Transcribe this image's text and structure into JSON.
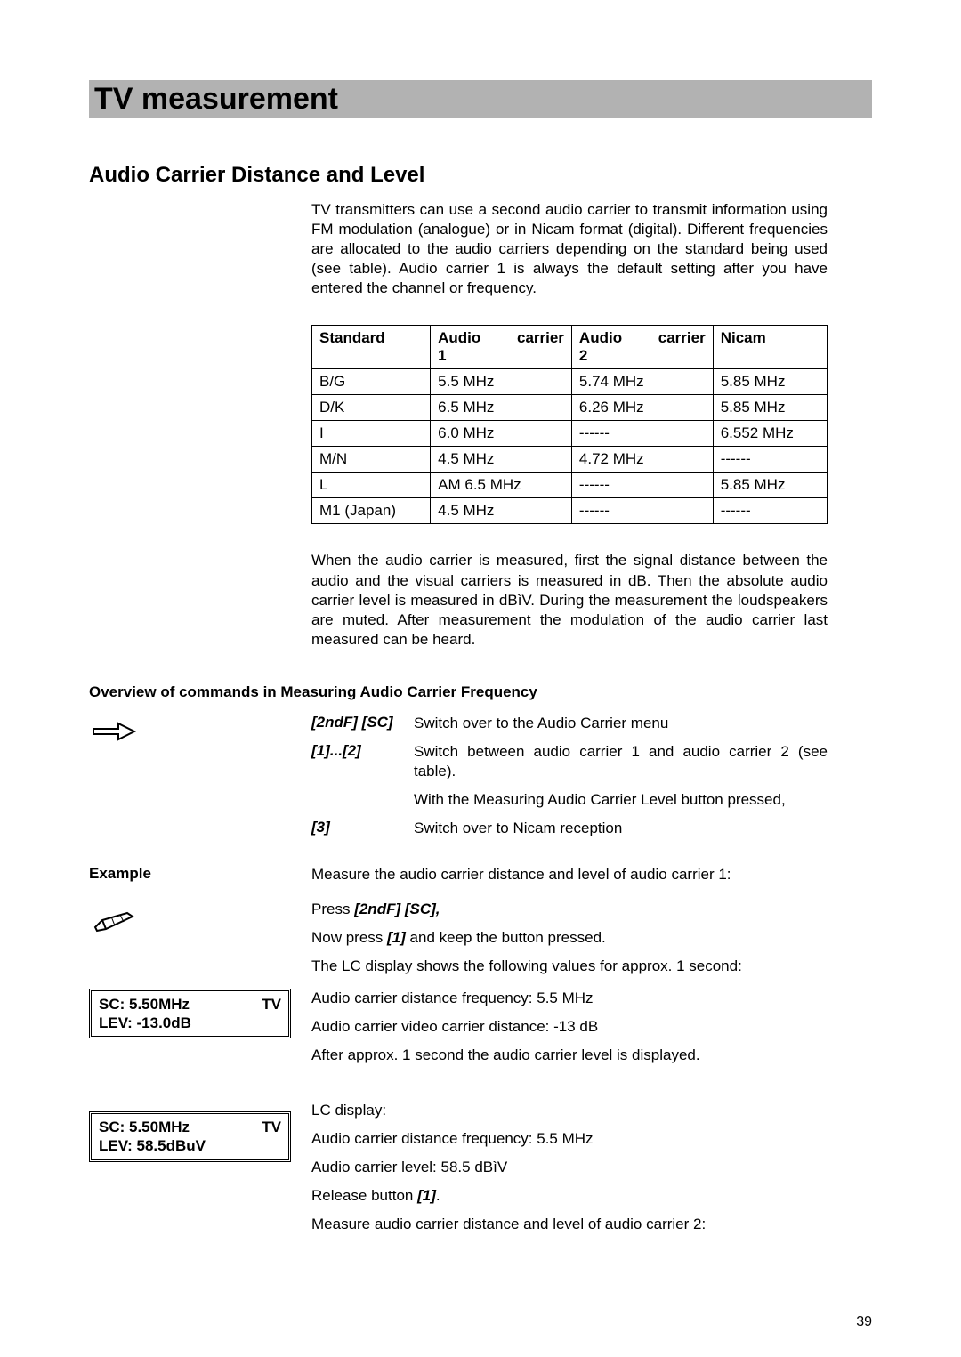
{
  "banner": "TV measurement",
  "section_heading": "Audio Carrier Distance and Level",
  "intro_para": "TV transmitters can use a second audio carrier to transmit information using FM modulation (analogue) or in Nicam format (digital). Different frequencies are allocated to the audio carriers depending on the standard being used (see table). Audio carrier 1 is always the default setting after you have entered the channel or frequency.",
  "table": {
    "columns": [
      "Standard",
      "Audio carrier 1",
      "Audio carrier 2",
      "Nicam"
    ],
    "rows": [
      [
        "B/G",
        "5.5 MHz",
        "5.74 MHz",
        "5.85 MHz"
      ],
      [
        "D/K",
        "6.5 MHz",
        "6.26 MHz",
        "5.85 MHz"
      ],
      [
        "I",
        "6.0 MHz",
        "------",
        "6.552 MHz"
      ],
      [
        "M/N",
        "4.5 MHz",
        "4.72 MHz",
        "------"
      ],
      [
        "L",
        "AM 6.5 MHz",
        "------",
        "5.85 MHz"
      ],
      [
        "M1 (Japan)",
        "4.5 MHz",
        "------",
        "------"
      ]
    ]
  },
  "para_after_table": "When the audio carrier is measured, first the signal distance between the audio and the visual carriers is measured in dB. Then the absolute audio carrier level is measured in dBìV. During the measurement the loudspeakers are muted. After measurement the modulation of the audio carrier last measured can be heard.",
  "overview_heading": "Overview of commands in Measuring Audio Carrier Frequency",
  "commands": [
    {
      "key": "[2ndF] [SC]",
      "desc": "Switch over to the Audio Carrier menu"
    },
    {
      "key": "[1]...[2]",
      "desc": "Switch between audio carrier 1 and audio carrier 2 (see table)."
    },
    {
      "key": "",
      "desc": "With the Measuring Audio Carrier Level button pressed,"
    },
    {
      "key": "[3]",
      "desc": "Switch over to Nicam reception"
    }
  ],
  "example_label": "Example",
  "example_intro": "Measure the audio carrier distance and level of audio carrier 1:",
  "press_line_prefix": "Press ",
  "press_line_key": "[2ndF] [SC],",
  "nowpress_prefix": "Now press ",
  "nowpress_key": "[1]",
  "nowpress_suffix": " and keep the button pressed.",
  "lc_shows": "The LC display shows the following values for approx. 1 second:",
  "ac_dist_freq": "Audio carrier distance frequency: 5.5 MHz",
  "ac_video_dist": "Audio carrier video carrier distance: -13 dB",
  "after_1s": "After approx. 1 second the audio carrier level is displayed.",
  "lcd1": {
    "sc": "SC: 5.50MHz",
    "tv": "TV",
    "lev": "LEV: -13.0dB"
  },
  "lc_display_label": "LC display:",
  "ac_dist_freq2": "Audio carrier distance frequency: 5.5 MHz",
  "ac_level": "Audio carrier level: 58.5 dBìV",
  "release_prefix": "Release button  ",
  "release_key": "[1]",
  "release_suffix": ".",
  "measure2": "Measure audio carrier distance and level of audio carrier 2:",
  "lcd2": {
    "sc": "SC: 5.50MHz",
    "tv": "TV",
    "lev": "LEV: 58.5dBuV"
  },
  "page_number": "39",
  "colors": {
    "banner_bg": "#b2b2b2",
    "text": "#000000",
    "page_bg": "#ffffff"
  }
}
